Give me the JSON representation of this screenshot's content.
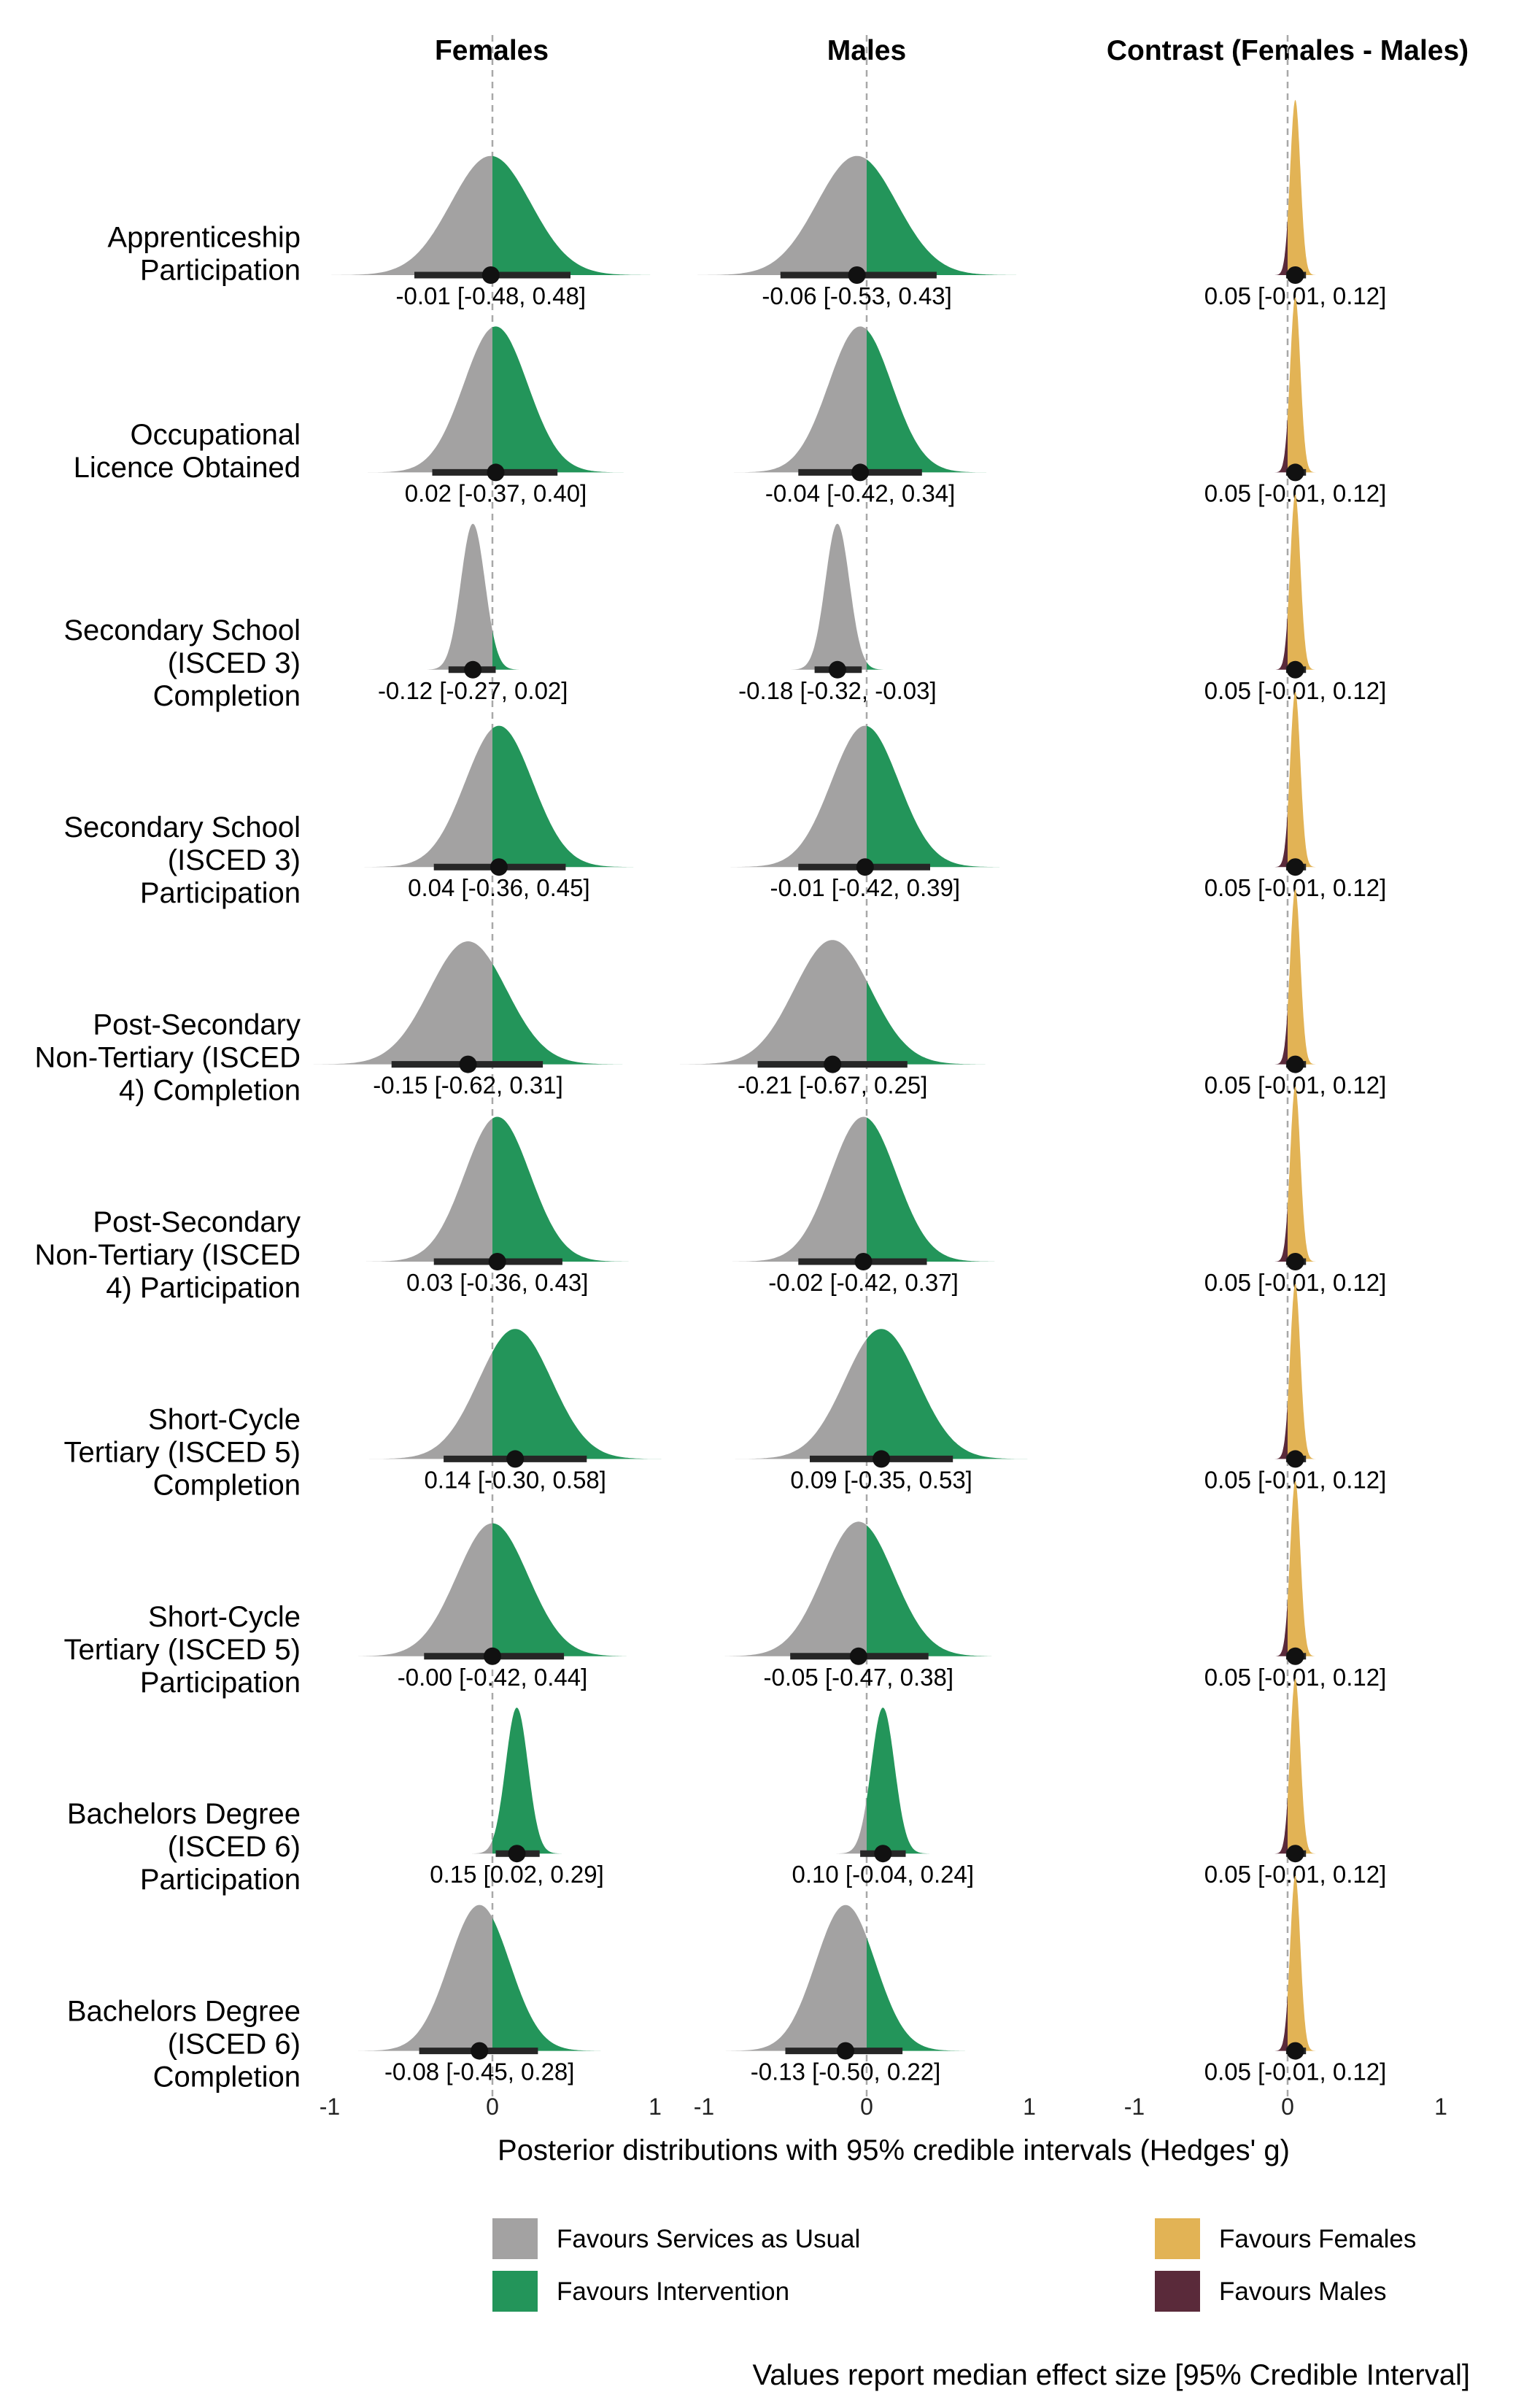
{
  "chart_data": {
    "type": "density-interval",
    "panels": [
      {
        "title": "Females",
        "type": "effect"
      },
      {
        "title": "Males",
        "type": "effect"
      },
      {
        "title": "Contrast (Females - Males)",
        "type": "contrast"
      }
    ],
    "x_ticks": [
      "-1",
      "0",
      "1"
    ],
    "x_range": [
      -1,
      1
    ],
    "xlabel": "Posterior distributions with 95% credible intervals (Hedges' g)",
    "outcomes": [
      {
        "label_lines": [
          "Apprenticeship",
          "Participation"
        ],
        "females": {
          "median": -0.01,
          "lo": -0.48,
          "hi": 0.48,
          "text": "-0.01 [-0.48, 0.48]"
        },
        "males": {
          "median": -0.06,
          "lo": -0.53,
          "hi": 0.43,
          "text": "-0.06 [-0.53, 0.43]"
        },
        "contrast": {
          "median": 0.05,
          "lo": -0.01,
          "hi": 0.12,
          "text": "0.05 [-0.01, 0.12]"
        }
      },
      {
        "label_lines": [
          "Occupational",
          "Licence Obtained"
        ],
        "females": {
          "median": 0.02,
          "lo": -0.37,
          "hi": 0.4,
          "text": "0.02 [-0.37, 0.40]"
        },
        "males": {
          "median": -0.04,
          "lo": -0.42,
          "hi": 0.34,
          "text": "-0.04 [-0.42, 0.34]"
        },
        "contrast": {
          "median": 0.05,
          "lo": -0.01,
          "hi": 0.12,
          "text": "0.05 [-0.01, 0.12]"
        }
      },
      {
        "label_lines": [
          "Secondary School",
          "(ISCED 3)",
          "Completion"
        ],
        "females": {
          "median": -0.12,
          "lo": -0.27,
          "hi": 0.02,
          "text": "-0.12 [-0.27, 0.02]"
        },
        "males": {
          "median": -0.18,
          "lo": -0.32,
          "hi": -0.03,
          "text": "-0.18 [-0.32, -0.03]"
        },
        "contrast": {
          "median": 0.05,
          "lo": -0.01,
          "hi": 0.12,
          "text": "0.05 [-0.01, 0.12]"
        }
      },
      {
        "label_lines": [
          "Secondary School",
          "(ISCED 3)",
          "Participation"
        ],
        "females": {
          "median": 0.04,
          "lo": -0.36,
          "hi": 0.45,
          "text": "0.04 [-0.36, 0.45]"
        },
        "males": {
          "median": -0.01,
          "lo": -0.42,
          "hi": 0.39,
          "text": "-0.01 [-0.42, 0.39]"
        },
        "contrast": {
          "median": 0.05,
          "lo": -0.01,
          "hi": 0.12,
          "text": "0.05 [-0.01, 0.12]"
        }
      },
      {
        "label_lines": [
          "Post-Secondary",
          "Non-Tertiary (ISCED",
          "4) Completion"
        ],
        "females": {
          "median": -0.15,
          "lo": -0.62,
          "hi": 0.31,
          "text": "-0.15 [-0.62, 0.31]"
        },
        "males": {
          "median": -0.21,
          "lo": -0.67,
          "hi": 0.25,
          "text": "-0.21 [-0.67, 0.25]"
        },
        "contrast": {
          "median": 0.05,
          "lo": -0.01,
          "hi": 0.12,
          "text": "0.05 [-0.01, 0.12]"
        }
      },
      {
        "label_lines": [
          "Post-Secondary",
          "Non-Tertiary (ISCED",
          "4) Participation"
        ],
        "females": {
          "median": 0.03,
          "lo": -0.36,
          "hi": 0.43,
          "text": "0.03 [-0.36, 0.43]"
        },
        "males": {
          "median": -0.02,
          "lo": -0.42,
          "hi": 0.37,
          "text": "-0.02 [-0.42, 0.37]"
        },
        "contrast": {
          "median": 0.05,
          "lo": -0.01,
          "hi": 0.12,
          "text": "0.05 [-0.01, 0.12]"
        }
      },
      {
        "label_lines": [
          "Short-Cycle",
          "Tertiary (ISCED 5)",
          "Completion"
        ],
        "females": {
          "median": 0.14,
          "lo": -0.3,
          "hi": 0.58,
          "text": "0.14 [-0.30, 0.58]"
        },
        "males": {
          "median": 0.09,
          "lo": -0.35,
          "hi": 0.53,
          "text": "0.09 [-0.35, 0.53]"
        },
        "contrast": {
          "median": 0.05,
          "lo": -0.01,
          "hi": 0.12,
          "text": "0.05 [-0.01, 0.12]"
        }
      },
      {
        "label_lines": [
          "Short-Cycle",
          "Tertiary (ISCED 5)",
          "Participation"
        ],
        "females": {
          "median": -0.0,
          "lo": -0.42,
          "hi": 0.44,
          "text": "-0.00 [-0.42, 0.44]"
        },
        "males": {
          "median": -0.05,
          "lo": -0.47,
          "hi": 0.38,
          "text": "-0.05 [-0.47, 0.38]"
        },
        "contrast": {
          "median": 0.05,
          "lo": -0.01,
          "hi": 0.12,
          "text": "0.05 [-0.01, 0.12]"
        }
      },
      {
        "label_lines": [
          "Bachelors Degree",
          "(ISCED 6)",
          "Participation"
        ],
        "females": {
          "median": 0.15,
          "lo": 0.02,
          "hi": 0.29,
          "text": "0.15 [0.02, 0.29]"
        },
        "males": {
          "median": 0.1,
          "lo": -0.04,
          "hi": 0.24,
          "text": "0.10 [-0.04, 0.24]"
        },
        "contrast": {
          "median": 0.05,
          "lo": -0.01,
          "hi": 0.12,
          "text": "0.05 [-0.01, 0.12]"
        }
      },
      {
        "label_lines": [
          "Bachelors Degree",
          "(ISCED 6)",
          "Completion"
        ],
        "females": {
          "median": -0.08,
          "lo": -0.45,
          "hi": 0.28,
          "text": "-0.08 [-0.45, 0.28]"
        },
        "males": {
          "median": -0.13,
          "lo": -0.5,
          "hi": 0.22,
          "text": "-0.13 [-0.50, 0.22]"
        },
        "contrast": {
          "median": 0.05,
          "lo": -0.01,
          "hi": 0.12,
          "text": "0.05 [-0.01, 0.12]"
        }
      }
    ],
    "colors": {
      "services_as_usual": "#a3a2a2",
      "intervention": "#23955a",
      "females": "#e2b355",
      "males": "#5a2a3a",
      "interval": "#262626",
      "reference_line": "#a8a8a8"
    },
    "legend": {
      "placement": "bottom",
      "items": [
        {
          "label": "Favours Services as Usual",
          "color": "#a3a2a2"
        },
        {
          "label": "Favours Intervention",
          "color": "#23955a"
        },
        {
          "label": "Favours Females",
          "color": "#e2b355"
        },
        {
          "label": "Favours Males",
          "color": "#5a2a3a"
        }
      ]
    },
    "footnote": "Values report median effect size [95% Credible Interval]"
  }
}
